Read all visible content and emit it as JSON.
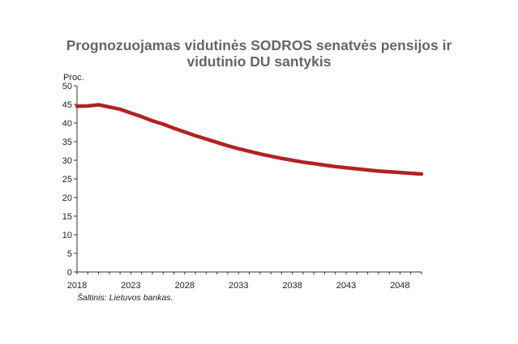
{
  "chart_data": {
    "type": "line",
    "title_lines": [
      "Prognozuojamas vidutinės SODROS senatvės pensijos ir",
      "vidutinio DU santykis"
    ],
    "ylabel": "Proc.",
    "xlabel": "",
    "ylim": [
      0,
      50
    ],
    "xlim": [
      2018,
      2050
    ],
    "yticks": [
      0,
      5,
      10,
      15,
      20,
      25,
      30,
      35,
      40,
      45,
      50
    ],
    "xticks": [
      2018,
      2023,
      2028,
      2033,
      2038,
      2043,
      2048
    ],
    "grid": false,
    "legend": "none",
    "color": "#b22222",
    "x": [
      2018,
      2019,
      2020,
      2021,
      2022,
      2023,
      2024,
      2025,
      2026,
      2027,
      2028,
      2029,
      2030,
      2031,
      2032,
      2033,
      2034,
      2035,
      2036,
      2037,
      2038,
      2039,
      2040,
      2041,
      2042,
      2043,
      2044,
      2045,
      2046,
      2047,
      2048,
      2049,
      2050
    ],
    "values": [
      44.5,
      44.6,
      44.9,
      44.3,
      43.7,
      42.7,
      41.7,
      40.6,
      39.7,
      38.6,
      37.6,
      36.6,
      35.7,
      34.8,
      33.9,
      33.1,
      32.4,
      31.7,
      31.1,
      30.5,
      30.0,
      29.5,
      29.1,
      28.7,
      28.3,
      28.0,
      27.7,
      27.4,
      27.1,
      26.9,
      26.7,
      26.5,
      26.3
    ]
  },
  "source_note": "Šaltinis: Lietuvos bankas."
}
